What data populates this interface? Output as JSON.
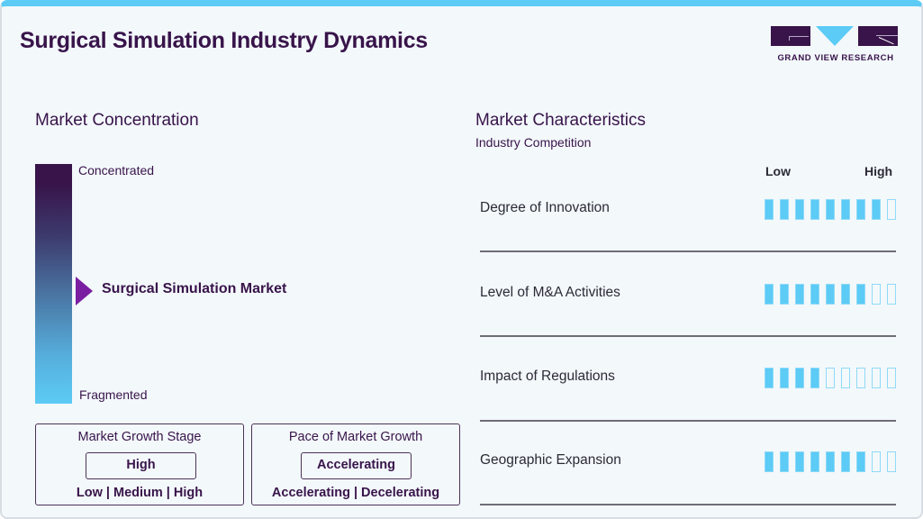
{
  "header": {
    "title": "Surgical Simulation Industry Dynamics",
    "logo_text": "GRAND VIEW RESEARCH"
  },
  "colors": {
    "brand_dark": "#38144a",
    "accent_blue": "#5ccbf5",
    "marker_purple": "#7a1fa2",
    "divider": "#6e6d78"
  },
  "concentration": {
    "title": "Market Concentration",
    "top_label": "Concentrated",
    "bottom_label": "Fragmented",
    "marker_label": "Surgical Simulation Market",
    "marker_icon": "triangle-right-icon"
  },
  "growth_stage": {
    "title": "Market Growth Stage",
    "value": "High",
    "options": "Low  |  Medium  |  High"
  },
  "growth_pace": {
    "title": "Pace of Market Growth",
    "value": "Accelerating",
    "options": "Accelerating  |  Decelerating"
  },
  "characteristics": {
    "title": "Market Characteristics",
    "subtitle": "Industry Competition",
    "scale_low": "Low",
    "scale_high": "High",
    "max_segments": 9,
    "rows": [
      {
        "label": "Degree of Innovation",
        "filled": 8
      },
      {
        "label": "Level of M&A Activities",
        "filled": 7
      },
      {
        "label": "Impact of Regulations",
        "filled": 4
      },
      {
        "label": "Geographic Expansion",
        "filled": 7
      }
    ]
  }
}
